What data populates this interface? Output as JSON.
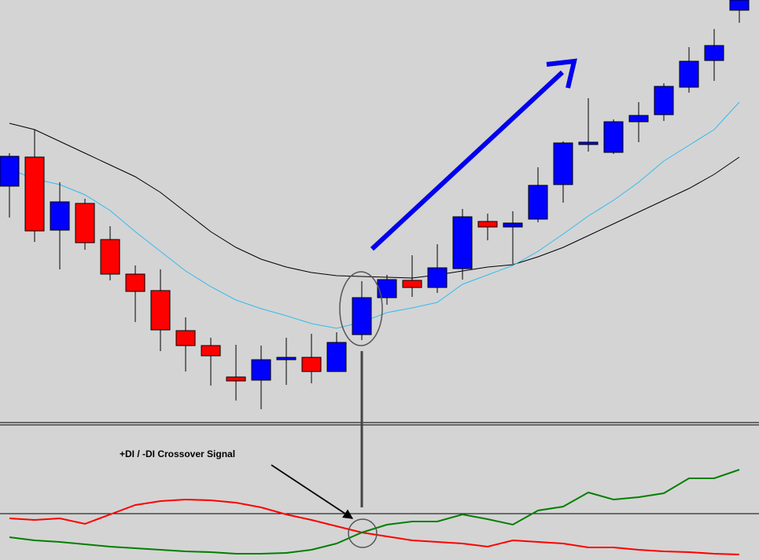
{
  "chart_data": [
    {
      "type": "candlestick",
      "ylim": [
        0,
        540
      ],
      "up_color": "#0000ff",
      "down_color": "#ff0000",
      "open": [
        303,
        340,
        247,
        281,
        235,
        191,
        170,
        119,
        100,
        60,
        56,
        82,
        85,
        67,
        114,
        161,
        183,
        174,
        198,
        258,
        251,
        261,
        305,
        356,
        346,
        385,
        394,
        429,
        463,
        527
      ],
      "high": [
        345,
        375,
        308,
        287,
        252,
        202,
        197,
        136,
        110,
        101,
        100,
        110,
        115,
        117,
        182,
        190,
        215,
        229,
        274,
        268,
        271,
        327,
        360,
        415,
        388,
        410,
        434,
        480,
        503,
        540
      ],
      "low": [
        263,
        232,
        197,
        222,
        183,
        130,
        93,
        67,
        49,
        30,
        19,
        50,
        52,
        67,
        107,
        152,
        162,
        167,
        184,
        234,
        204,
        257,
        282,
        347,
        344,
        359,
        386,
        422,
        437,
        511
      ],
      "close": [
        341,
        246,
        283,
        231,
        191,
        169,
        120,
        100,
        87,
        55,
        82,
        85,
        67,
        104,
        161,
        184,
        174,
        199,
        264,
        251,
        256,
        304,
        358,
        359,
        385,
        393,
        430,
        462,
        482,
        540
      ],
      "series": [
        {
          "color": "#000000",
          "values": [
            383,
            375,
            360,
            345,
            330,
            315,
            295,
            270,
            245,
            225,
            210,
            200,
            193,
            189,
            188,
            187,
            186,
            190,
            195,
            200,
            203,
            213,
            225,
            240,
            255,
            270,
            285,
            300,
            318,
            340
          ]
        },
        {
          "color": "#33bbee",
          "values": [
            325,
            312,
            305,
            292,
            272,
            245,
            220,
            195,
            175,
            158,
            147,
            138,
            128,
            122,
            130,
            142,
            148,
            155,
            178,
            190,
            202,
            220,
            242,
            265,
            285,
            308,
            335,
            355,
            375,
            410
          ]
        }
      ]
    },
    {
      "type": "line",
      "annotation": "+DI / -DI Crossover Signal",
      "ylim": [
        0,
        172
      ],
      "level": 59,
      "series": [
        {
          "color": "#ff0000",
          "values": [
            53,
            51,
            53,
            46,
            58,
            70,
            75,
            77,
            76,
            73,
            67,
            58,
            51,
            43,
            35,
            30,
            25,
            23,
            21,
            17,
            25,
            23,
            21,
            16,
            16,
            13,
            11,
            10,
            8,
            7
          ]
        },
        {
          "color": "#008000",
          "values": [
            29,
            25,
            23,
            20,
            17,
            15,
            13,
            11,
            10,
            8,
            8,
            9,
            13,
            21,
            35,
            45,
            49,
            49,
            58,
            52,
            45,
            63,
            68,
            86,
            77,
            80,
            85,
            104,
            104,
            115
          ]
        }
      ]
    }
  ]
}
